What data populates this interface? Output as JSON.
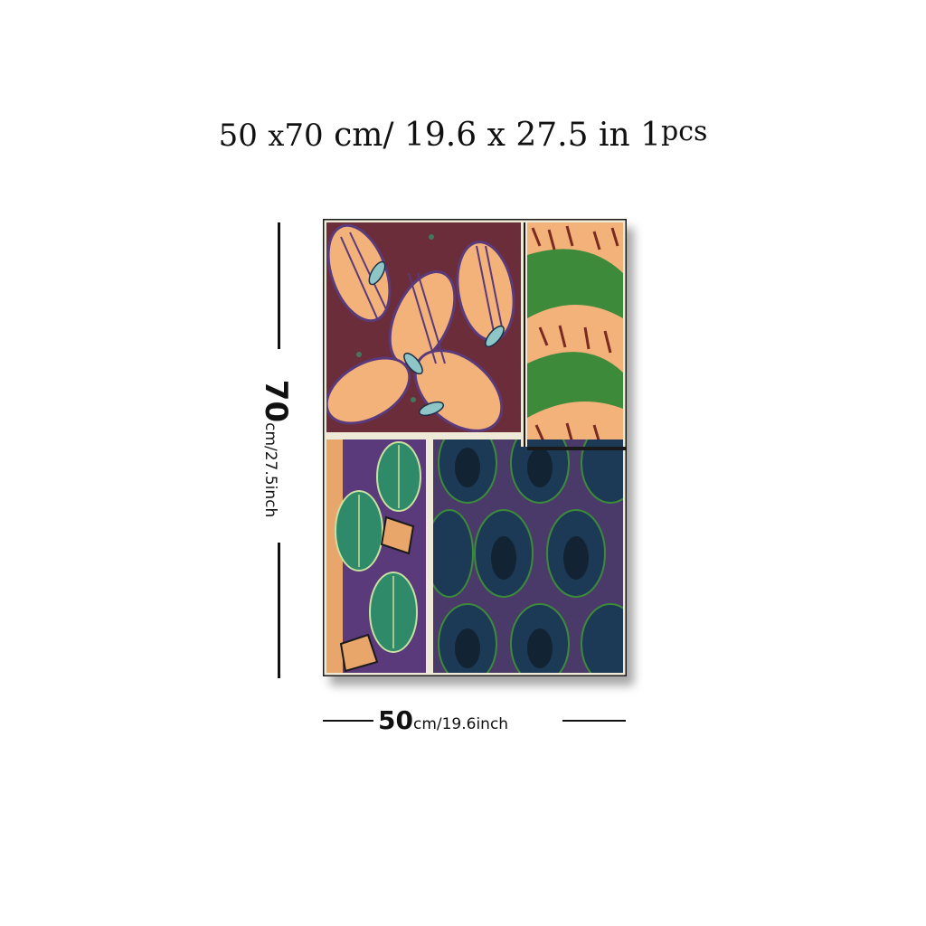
{
  "header": {
    "w_value": "50",
    "x1": "x",
    "h_value": "70",
    "unit_cm": "cm/",
    "in_dims": "19.6 x 27.5",
    "unit_in": "in",
    "qty_num": "1",
    "qty_unit": "pcs"
  },
  "height_dimension": {
    "value": "70",
    "unit": "cm/27.5inch"
  },
  "width_dimension": {
    "value": "50",
    "unit": "cm/19.6inch"
  },
  "colors": {
    "plum": "#6b2d3a",
    "peach": "#f2b27a",
    "teal": "#2f8a86",
    "purple": "#5a3a7a",
    "navy": "#1c2f45",
    "green": "#3c8a3a"
  },
  "icons": [
    "beetle-pattern-panel",
    "moth-wing-panel",
    "green-beetle-panel",
    "blue-beetle-panel"
  ]
}
